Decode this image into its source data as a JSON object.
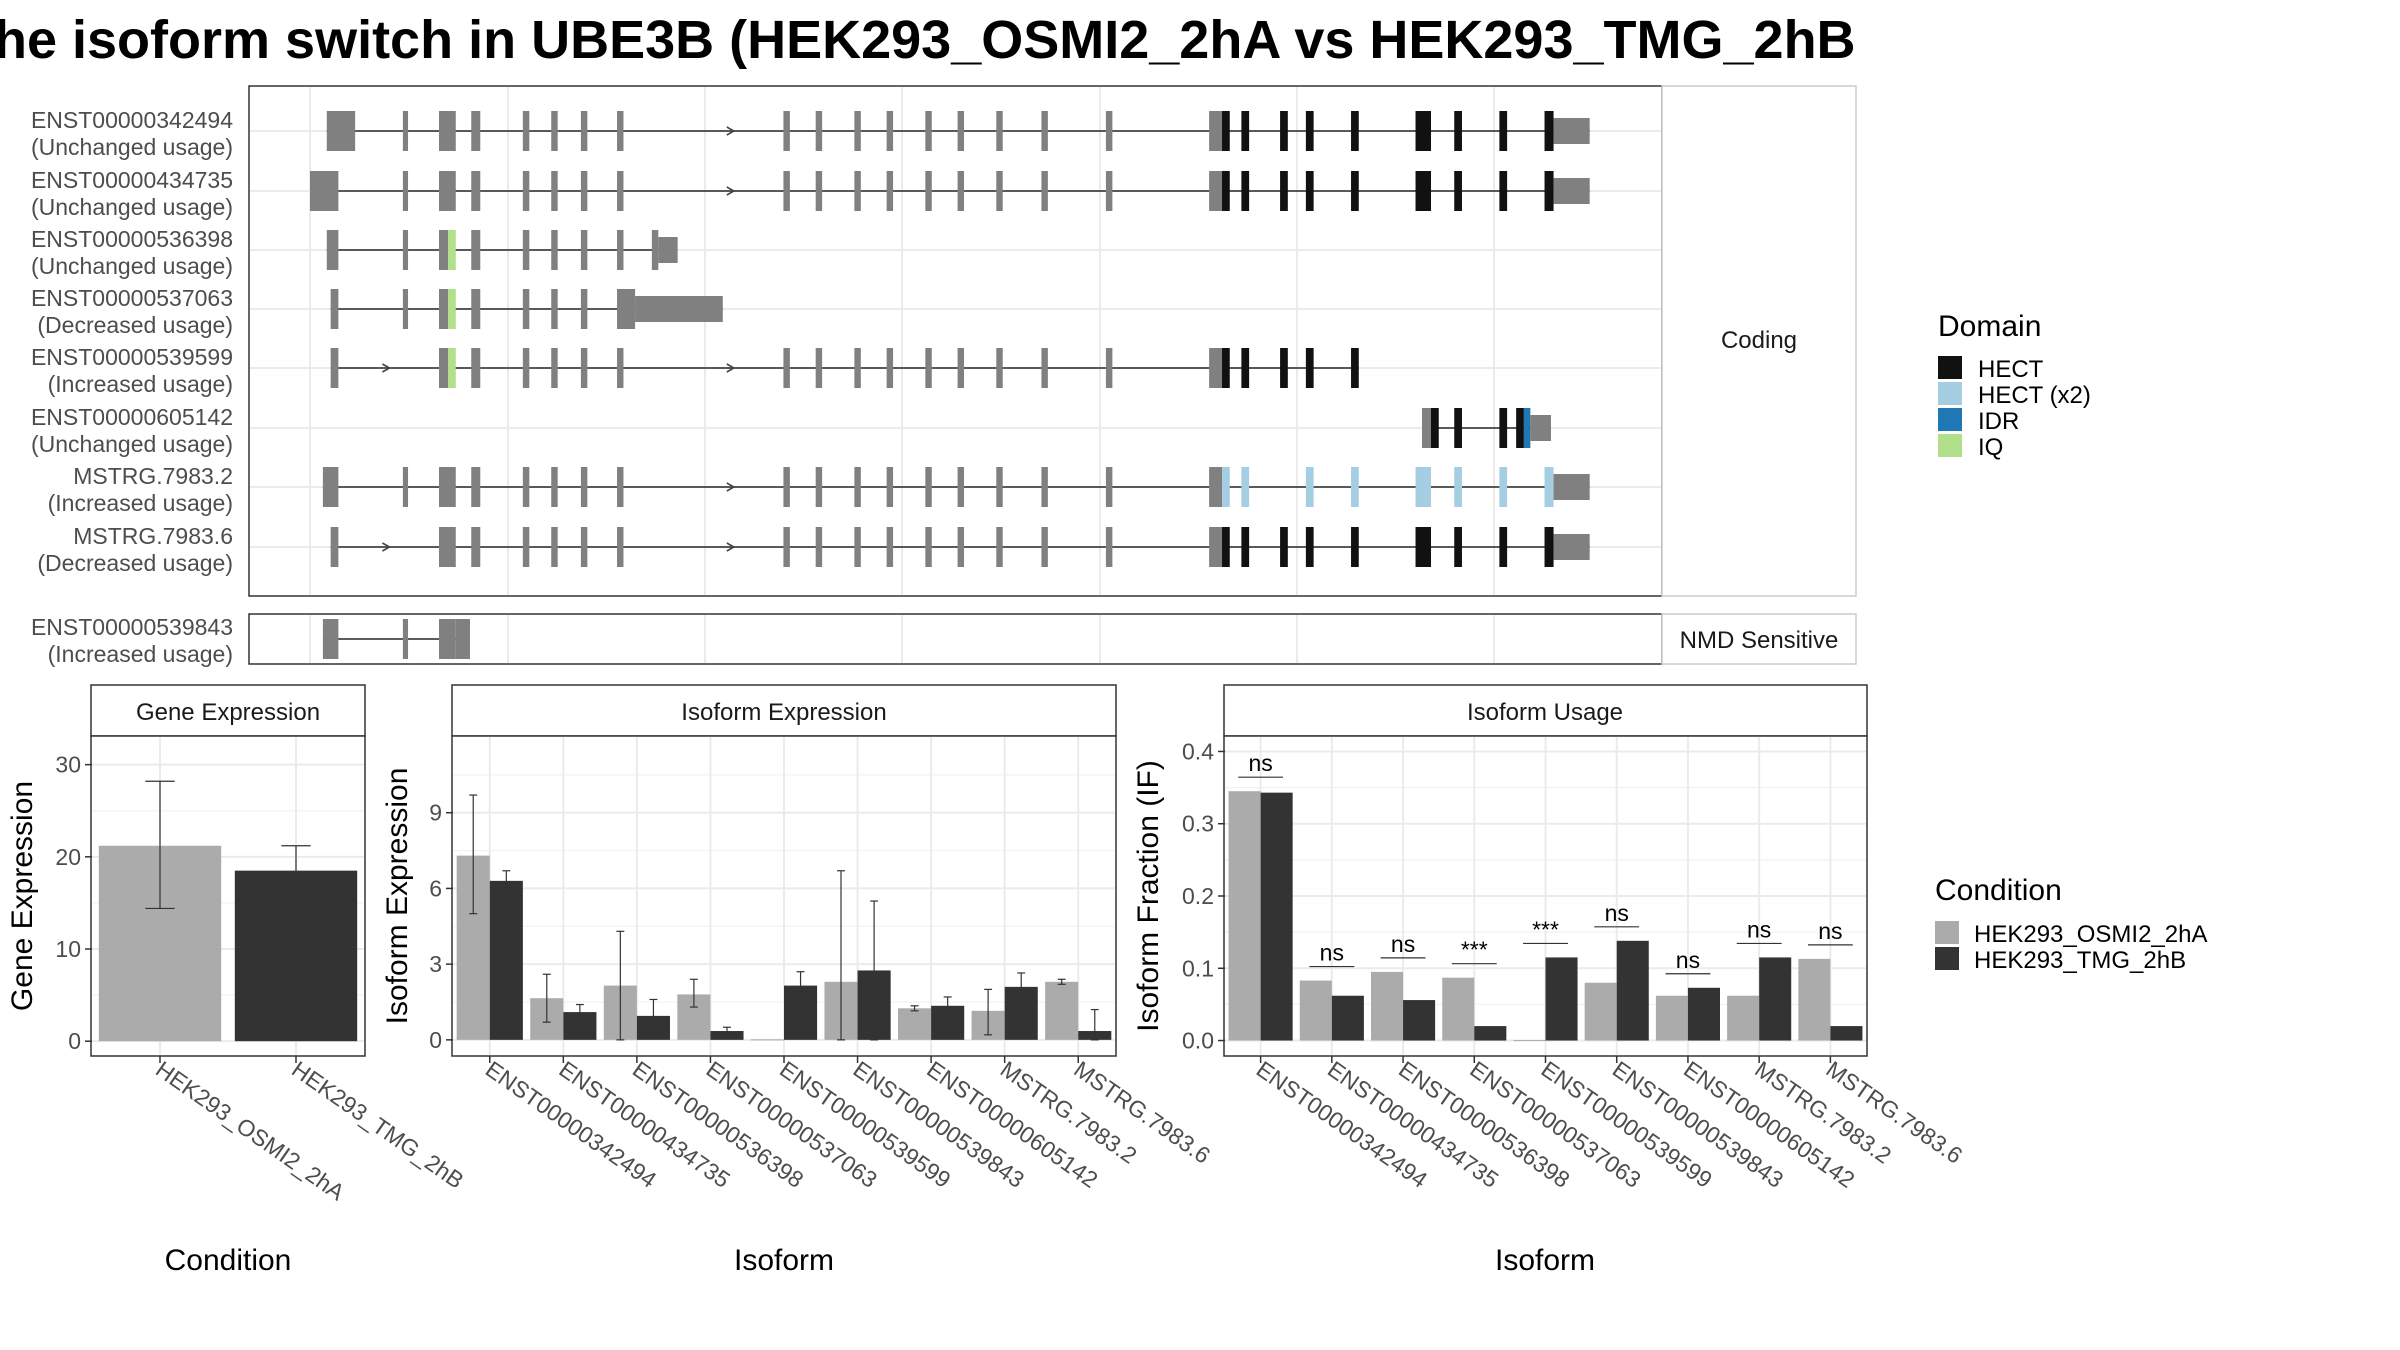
{
  "title": "he isoform switch in UBE3B (HEK293_OSMI2_2hA vs HEK293_TMG_2hB",
  "colors": {
    "condition_a": "#ABABAB",
    "condition_b": "#333333",
    "exon": "#808080",
    "HECT": "#111111",
    "HECT (x2)": "#A6CEE3",
    "IDR": "#1F78B4",
    "IQ": "#B2DF8A"
  },
  "structure": {
    "coding_strip": "Coding",
    "nmd_strip": "NMD Sensitive",
    "transcripts": [
      {
        "id": "ENST00000342494",
        "usage": "(Unchanged usage)",
        "exons": [
          [
            0.013,
            0.035,
            "b"
          ],
          [
            0.072,
            0.076,
            "b"
          ],
          [
            0.1,
            0.113,
            "b"
          ],
          [
            0.125,
            0.132,
            "b"
          ],
          [
            0.165,
            0.17,
            "b"
          ],
          [
            0.187,
            0.192,
            "b"
          ],
          [
            0.21,
            0.215,
            "b"
          ],
          [
            0.238,
            0.243,
            "b"
          ],
          [
            0.367,
            0.372,
            "b"
          ],
          [
            0.392,
            0.397,
            "b"
          ],
          [
            0.422,
            0.427,
            "b"
          ],
          [
            0.447,
            0.452,
            "b"
          ],
          [
            0.477,
            0.482,
            "b"
          ],
          [
            0.502,
            0.507,
            "b"
          ],
          [
            0.532,
            0.537,
            "b"
          ],
          [
            0.567,
            0.572,
            "b"
          ],
          [
            0.617,
            0.622,
            "b"
          ],
          [
            0.697,
            0.707,
            "b"
          ],
          [
            0.707,
            0.713,
            "d",
            0
          ],
          [
            0.722,
            0.728,
            "d",
            0
          ],
          [
            0.752,
            0.758,
            "d",
            0
          ],
          [
            0.772,
            0.778,
            "d",
            0
          ],
          [
            0.807,
            0.813,
            "d",
            0
          ],
          [
            0.857,
            0.869,
            "d",
            0
          ],
          [
            0.887,
            0.893,
            "d",
            0
          ],
          [
            0.922,
            0.928,
            "d",
            0
          ],
          [
            0.957,
            0.964,
            "d",
            0
          ],
          [
            0.964,
            0.992,
            "w"
          ]
        ],
        "arrows": [
          0.327
        ]
      },
      {
        "id": "ENST00000434735",
        "usage": "(Unchanged usage)",
        "exons": [
          [
            0.0,
            0.022,
            "b"
          ],
          [
            0.072,
            0.076,
            "b"
          ],
          [
            0.1,
            0.113,
            "b"
          ],
          [
            0.125,
            0.132,
            "b"
          ],
          [
            0.165,
            0.17,
            "b"
          ],
          [
            0.187,
            0.192,
            "b"
          ],
          [
            0.21,
            0.215,
            "b"
          ],
          [
            0.238,
            0.243,
            "b"
          ],
          [
            0.367,
            0.372,
            "b"
          ],
          [
            0.392,
            0.397,
            "b"
          ],
          [
            0.422,
            0.427,
            "b"
          ],
          [
            0.447,
            0.452,
            "b"
          ],
          [
            0.477,
            0.482,
            "b"
          ],
          [
            0.502,
            0.507,
            "b"
          ],
          [
            0.532,
            0.537,
            "b"
          ],
          [
            0.567,
            0.572,
            "b"
          ],
          [
            0.617,
            0.622,
            "b"
          ],
          [
            0.697,
            0.707,
            "b"
          ],
          [
            0.707,
            0.713,
            "d",
            0
          ],
          [
            0.722,
            0.728,
            "d",
            0
          ],
          [
            0.752,
            0.758,
            "d",
            0
          ],
          [
            0.772,
            0.778,
            "d",
            0
          ],
          [
            0.807,
            0.813,
            "d",
            0
          ],
          [
            0.857,
            0.869,
            "d",
            0
          ],
          [
            0.887,
            0.893,
            "d",
            0
          ],
          [
            0.922,
            0.928,
            "d",
            0
          ],
          [
            0.957,
            0.964,
            "d",
            0
          ],
          [
            0.964,
            0.992,
            "w"
          ]
        ],
        "arrows": [
          0.327
        ]
      },
      {
        "id": "ENST00000536398",
        "usage": "(Unchanged usage)",
        "exons": [
          [
            0.013,
            0.022,
            "b"
          ],
          [
            0.072,
            0.076,
            "b"
          ],
          [
            0.1,
            0.107,
            "b"
          ],
          [
            0.107,
            0.113,
            "d",
            3
          ],
          [
            0.125,
            0.132,
            "b"
          ],
          [
            0.165,
            0.17,
            "b"
          ],
          [
            0.187,
            0.192,
            "b"
          ],
          [
            0.21,
            0.215,
            "b"
          ],
          [
            0.238,
            0.243,
            "b"
          ],
          [
            0.265,
            0.27,
            "b"
          ],
          [
            0.27,
            0.285,
            "w"
          ]
        ],
        "arrows": []
      },
      {
        "id": "ENST00000537063",
        "usage": "(Decreased usage)",
        "exons": [
          [
            0.016,
            0.022,
            "b"
          ],
          [
            0.072,
            0.076,
            "b"
          ],
          [
            0.1,
            0.107,
            "b"
          ],
          [
            0.107,
            0.113,
            "d",
            3
          ],
          [
            0.125,
            0.132,
            "b"
          ],
          [
            0.165,
            0.17,
            "b"
          ],
          [
            0.187,
            0.192,
            "b"
          ],
          [
            0.21,
            0.215,
            "b"
          ],
          [
            0.238,
            0.252,
            "b"
          ],
          [
            0.252,
            0.32,
            "w"
          ]
        ],
        "arrows": []
      },
      {
        "id": "ENST00000539599",
        "usage": "(Increased usage)",
        "exons": [
          [
            0.016,
            0.022,
            "b"
          ],
          [
            0.1,
            0.107,
            "b"
          ],
          [
            0.107,
            0.113,
            "d",
            3
          ],
          [
            0.125,
            0.132,
            "b"
          ],
          [
            0.165,
            0.17,
            "b"
          ],
          [
            0.187,
            0.192,
            "b"
          ],
          [
            0.21,
            0.215,
            "b"
          ],
          [
            0.238,
            0.243,
            "b"
          ],
          [
            0.367,
            0.372,
            "b"
          ],
          [
            0.392,
            0.397,
            "b"
          ],
          [
            0.422,
            0.427,
            "b"
          ],
          [
            0.447,
            0.452,
            "b"
          ],
          [
            0.477,
            0.482,
            "b"
          ],
          [
            0.502,
            0.507,
            "b"
          ],
          [
            0.532,
            0.537,
            "b"
          ],
          [
            0.567,
            0.572,
            "b"
          ],
          [
            0.617,
            0.622,
            "b"
          ],
          [
            0.697,
            0.707,
            "b"
          ],
          [
            0.707,
            0.713,
            "d",
            0
          ],
          [
            0.722,
            0.728,
            "d",
            0
          ],
          [
            0.752,
            0.758,
            "d",
            0
          ],
          [
            0.772,
            0.778,
            "d",
            0
          ],
          [
            0.807,
            0.813,
            "d",
            0
          ]
        ],
        "arrows": [
          0.06,
          0.327
        ]
      },
      {
        "id": "ENST00000605142",
        "usage": "(Unchanged usage)",
        "exons": [
          [
            0.862,
            0.869,
            "b"
          ],
          [
            0.869,
            0.875,
            "d",
            0
          ],
          [
            0.887,
            0.893,
            "d",
            0
          ],
          [
            0.922,
            0.928,
            "d",
            0
          ],
          [
            0.935,
            0.941,
            "d",
            0
          ],
          [
            0.941,
            0.946,
            "d",
            2
          ],
          [
            0.946,
            0.962,
            "w"
          ]
        ],
        "arrows": []
      },
      {
        "id": "MSTRG.7983.2",
        "usage": "(Increased usage)",
        "exons": [
          [
            0.01,
            0.022,
            "b"
          ],
          [
            0.072,
            0.076,
            "b"
          ],
          [
            0.1,
            0.113,
            "b"
          ],
          [
            0.125,
            0.132,
            "b"
          ],
          [
            0.165,
            0.17,
            "b"
          ],
          [
            0.187,
            0.192,
            "b"
          ],
          [
            0.21,
            0.215,
            "b"
          ],
          [
            0.238,
            0.243,
            "b"
          ],
          [
            0.367,
            0.372,
            "b"
          ],
          [
            0.392,
            0.397,
            "b"
          ],
          [
            0.422,
            0.427,
            "b"
          ],
          [
            0.447,
            0.452,
            "b"
          ],
          [
            0.477,
            0.482,
            "b"
          ],
          [
            0.502,
            0.507,
            "b"
          ],
          [
            0.532,
            0.537,
            "b"
          ],
          [
            0.567,
            0.572,
            "b"
          ],
          [
            0.617,
            0.622,
            "b"
          ],
          [
            0.697,
            0.707,
            "b"
          ],
          [
            0.707,
            0.713,
            "d",
            1
          ],
          [
            0.722,
            0.728,
            "d",
            1
          ],
          [
            0.772,
            0.778,
            "d",
            1
          ],
          [
            0.807,
            0.813,
            "d",
            1
          ],
          [
            0.857,
            0.869,
            "d",
            1
          ],
          [
            0.887,
            0.893,
            "d",
            1
          ],
          [
            0.922,
            0.928,
            "d",
            1
          ],
          [
            0.957,
            0.964,
            "d",
            1
          ],
          [
            0.964,
            0.992,
            "w"
          ]
        ],
        "arrows": [
          0.327
        ]
      },
      {
        "id": "MSTRG.7983.6",
        "usage": "(Decreased usage)",
        "exons": [
          [
            0.016,
            0.022,
            "b"
          ],
          [
            0.1,
            0.113,
            "b"
          ],
          [
            0.125,
            0.132,
            "b"
          ],
          [
            0.165,
            0.17,
            "b"
          ],
          [
            0.187,
            0.192,
            "b"
          ],
          [
            0.21,
            0.215,
            "b"
          ],
          [
            0.238,
            0.243,
            "b"
          ],
          [
            0.367,
            0.372,
            "b"
          ],
          [
            0.392,
            0.397,
            "b"
          ],
          [
            0.422,
            0.427,
            "b"
          ],
          [
            0.447,
            0.452,
            "b"
          ],
          [
            0.477,
            0.482,
            "b"
          ],
          [
            0.502,
            0.507,
            "b"
          ],
          [
            0.532,
            0.537,
            "b"
          ],
          [
            0.567,
            0.572,
            "b"
          ],
          [
            0.617,
            0.622,
            "b"
          ],
          [
            0.697,
            0.707,
            "b"
          ],
          [
            0.707,
            0.713,
            "d",
            0
          ],
          [
            0.722,
            0.728,
            "d",
            0
          ],
          [
            0.752,
            0.758,
            "d",
            0
          ],
          [
            0.772,
            0.778,
            "d",
            0
          ],
          [
            0.807,
            0.813,
            "d",
            0
          ],
          [
            0.857,
            0.869,
            "d",
            0
          ],
          [
            0.887,
            0.893,
            "d",
            0
          ],
          [
            0.922,
            0.928,
            "d",
            0
          ],
          [
            0.957,
            0.964,
            "d",
            0
          ],
          [
            0.964,
            0.992,
            "w"
          ]
        ],
        "arrows": [
          0.06,
          0.327
        ]
      }
    ],
    "nmd_transcript": {
      "id": "ENST00000539843",
      "usage": "(Increased usage)",
      "exons": [
        [
          0.01,
          0.022,
          "b"
        ],
        [
          0.072,
          0.076,
          "b"
        ],
        [
          0.1,
          0.113,
          "b"
        ],
        [
          0.113,
          0.124,
          "b"
        ]
      ],
      "arrows": []
    }
  },
  "legend_domain": {
    "title": "Domain",
    "items": [
      "HECT",
      "HECT (x2)",
      "IDR",
      "IQ"
    ]
  },
  "legend_condition": {
    "title": "Condition",
    "items": [
      "HEK293_OSMI2_2hA",
      "HEK293_TMG_2hB"
    ]
  },
  "chart_data": [
    {
      "type": "bar",
      "title": "Gene Expression",
      "xlabel": "Condition",
      "ylabel": "Gene Expression",
      "ylim": [
        -1.5,
        33
      ],
      "yticks": [
        0,
        10,
        20,
        30
      ],
      "categories": [
        "HEK293_OSMI2_2hA",
        "HEK293_TMG_2hB"
      ],
      "values": [
        21.2,
        18.5
      ],
      "error_low": [
        14.4,
        16.2
      ],
      "error_high": [
        28.2,
        21.2
      ]
    },
    {
      "type": "bar",
      "title": "Isoform Expression",
      "xlabel": "Isoform",
      "ylabel": "Isoform Expression",
      "ylim": [
        -0.6,
        12
      ],
      "yticks": [
        0,
        3,
        6,
        9
      ],
      "categories": [
        "ENST00000342494",
        "ENST00000434735",
        "ENST00000536398",
        "ENST00000537063",
        "ENST00000539599",
        "ENST00000539843",
        "ENST00000605142",
        "MSTRG.7983.2",
        "MSTRG.7983.6"
      ],
      "series": [
        {
          "name": "HEK293_OSMI2_2hA",
          "values": [
            7.3,
            1.65,
            2.15,
            1.8,
            0.0,
            2.3,
            1.25,
            1.15,
            2.3
          ],
          "error_low": [
            5.0,
            0.7,
            0.0,
            1.3,
            0.0,
            0.0,
            1.15,
            0.2,
            2.2
          ],
          "error_high": [
            9.7,
            2.6,
            4.3,
            2.4,
            0.0,
            6.7,
            1.35,
            2.0,
            2.4
          ]
        },
        {
          "name": "HEK293_TMG_2hB",
          "values": [
            6.3,
            1.1,
            0.95,
            0.35,
            2.15,
            2.75,
            1.35,
            2.1,
            0.35
          ],
          "error_low": [
            5.9,
            0.8,
            0.3,
            0.2,
            1.6,
            0.0,
            1.0,
            1.55,
            0.0
          ],
          "error_high": [
            6.7,
            1.4,
            1.6,
            0.5,
            2.7,
            5.5,
            1.7,
            2.65,
            1.2
          ]
        }
      ]
    },
    {
      "type": "bar",
      "title": "Isoform Usage",
      "xlabel": "Isoform",
      "ylabel": "Isoform Fraction (IF)",
      "ylim": [
        -0.02,
        0.42
      ],
      "yticks": [
        0.0,
        0.1,
        0.2,
        0.3,
        0.4
      ],
      "categories": [
        "ENST00000342494",
        "ENST00000434735",
        "ENST00000536398",
        "ENST00000537063",
        "ENST00000539599",
        "ENST00000539843",
        "ENST00000605142",
        "MSTRG.7983.2",
        "MSTRG.7983.6"
      ],
      "series": [
        {
          "name": "HEK293_OSMI2_2hA",
          "values": [
            0.345,
            0.083,
            0.095,
            0.087,
            0.0,
            0.08,
            0.062,
            0.062,
            0.113
          ]
        },
        {
          "name": "HEK293_TMG_2hB",
          "values": [
            0.343,
            0.062,
            0.056,
            0.02,
            0.115,
            0.138,
            0.073,
            0.115,
            0.02
          ]
        }
      ],
      "significance": [
        "ns",
        "ns",
        "ns",
        "***",
        "***",
        "ns",
        "ns",
        "ns",
        "ns"
      ]
    }
  ]
}
